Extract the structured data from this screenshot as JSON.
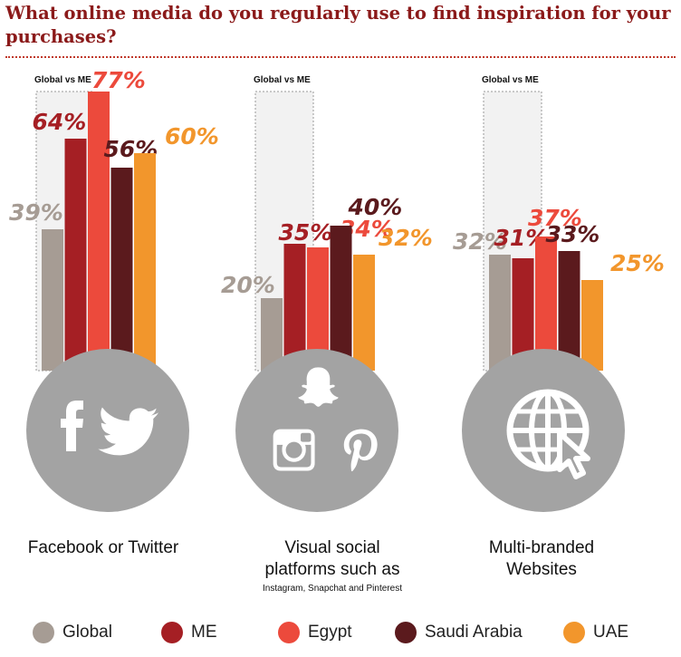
{
  "title": "What online media do you regularly use to find inspiration for your purchases?",
  "colors": {
    "Global": "#a69c94",
    "ME": "#a51f24",
    "Egypt": "#ec4a3c",
    "Saudi Arabia": "#5b1a1d",
    "UAE": "#f2962c",
    "circle": "#a3a3a3"
  },
  "groups": [
    {
      "tag": "Global vs ME",
      "label_lines": [
        "Facebook or Twitter"
      ],
      "note": "",
      "icons": [
        "facebook-icon",
        "twitter-icon"
      ]
    },
    {
      "tag": "Global vs ME",
      "label_lines": [
        "Visual social",
        "platforms such as"
      ],
      "note": "Instagram, Snapchat and Pinterest",
      "icons": [
        "snapchat-icon",
        "instagram-icon",
        "pinterest-icon"
      ]
    },
    {
      "tag": "Global vs ME",
      "label_lines": [
        "Multi-branded",
        "Websites"
      ],
      "note": "",
      "icons": [
        "globe-icon",
        "cursor-icon"
      ]
    }
  ],
  "chart_data": {
    "type": "bar",
    "categories": [
      "Facebook or Twitter",
      "Visual social platforms such as Instagram, Snapchat and Pinterest",
      "Multi-branded Websites"
    ],
    "series": [
      {
        "name": "Global",
        "values": [
          39,
          20,
          32
        ]
      },
      {
        "name": "ME",
        "values": [
          64,
          35,
          31
        ]
      },
      {
        "name": "Egypt",
        "values": [
          77,
          34,
          37
        ]
      },
      {
        "name": "Saudi Arabia",
        "values": [
          56,
          40,
          33
        ]
      },
      {
        "name": "UAE",
        "values": [
          60,
          32,
          25
        ]
      }
    ],
    "ylim": [
      0,
      80
    ],
    "legend_position": "bottom"
  },
  "legend": [
    "Global",
    "ME",
    "Egypt",
    "Saudi Arabia",
    "UAE"
  ]
}
